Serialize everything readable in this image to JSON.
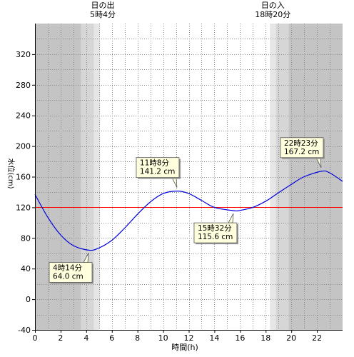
{
  "chart_data": {
    "type": "line",
    "xlabel": "時間(h)",
    "ylabel": "水位(cm)",
    "xlim": [
      0,
      24
    ],
    "ylim": [
      -40,
      360
    ],
    "x_ticks": [
      "0",
      "2",
      "4",
      "6",
      "8",
      "10",
      "12",
      "14",
      "16",
      "18",
      "20",
      "22"
    ],
    "y_ticks": [
      "-40",
      "0",
      "40",
      "80",
      "120",
      "160",
      "200",
      "240",
      "280",
      "320"
    ],
    "grid": true,
    "reference_line": {
      "y": 120,
      "color": "#ff0000"
    },
    "series": [
      {
        "color": "#0000dd",
        "x": [
          0,
          1,
          2,
          3,
          4.233,
          5,
          6,
          7,
          8,
          9,
          10,
          11.133,
          12,
          13,
          14,
          15.533,
          16,
          17,
          18,
          19,
          20,
          21,
          22.383,
          23,
          24
        ],
        "y": [
          137,
          107,
          84,
          70,
          64,
          67,
          77,
          93,
          111,
          127,
          138,
          141.2,
          138,
          129,
          120,
          115.6,
          116,
          120,
          128,
          139,
          150,
          160,
          167.2,
          165,
          154
        ]
      }
    ],
    "shading": [
      {
        "from": 0,
        "to": 3.6,
        "color": "#c4c4c4"
      },
      {
        "from": 3.6,
        "to": 4.6,
        "color": "#d6d6d6"
      },
      {
        "from": 4.6,
        "to": 5.067,
        "color": "#e6e6e6"
      },
      {
        "from": 5.067,
        "to": 18.333,
        "color": "#ffffff"
      },
      {
        "from": 18.333,
        "to": 18.8,
        "color": "#e6e6e6"
      },
      {
        "from": 18.8,
        "to": 19.8,
        "color": "#d6d6d6"
      },
      {
        "from": 19.8,
        "to": 24,
        "color": "#c4c4c4"
      }
    ],
    "sun_labels": [
      {
        "title": "日の出",
        "time": "5時4分",
        "x": 5.067
      },
      {
        "title": "日の入",
        "time": "18時20分",
        "x": 18.333
      }
    ],
    "annotations": [
      {
        "time": "4時14分",
        "value": "64.0 cm",
        "x": 4.233,
        "y": 64.0,
        "placement": "below"
      },
      {
        "time": "11時8分",
        "value": "141.2 cm",
        "x": 11.133,
        "y": 141.2,
        "placement": "above"
      },
      {
        "time": "15時32分",
        "value": "115.6 cm",
        "x": 15.533,
        "y": 115.6,
        "placement": "below"
      },
      {
        "time": "22時23分",
        "value": "167.2 cm",
        "x": 22.383,
        "y": 167.2,
        "placement": "above"
      }
    ]
  }
}
